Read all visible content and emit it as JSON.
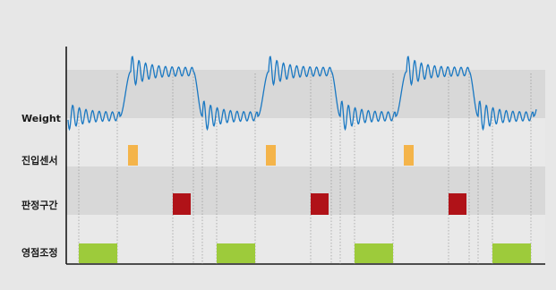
{
  "rows": [
    {
      "key": "weight",
      "label": "Weight"
    },
    {
      "key": "entry_sensor",
      "label": "진입센서"
    },
    {
      "key": "judgment_zone",
      "label": "판정구간"
    },
    {
      "key": "zero_adjust",
      "label": "영점조정"
    }
  ],
  "colors": {
    "background": "#e7e7e7",
    "band_dark": "#d8d8d8",
    "band_light": "#e9e9e9",
    "weight_signal": "#1a78c2",
    "entry_sensor": "#f4b44a",
    "judgment_zone": "#b01218",
    "zero_adjust": "#9dcb3b",
    "axis": "#1a1a1a",
    "guide_line": "#8a8a8a"
  },
  "cycle_count": 3,
  "signal_states": [
    "low",
    "rise",
    "high",
    "fall",
    "low"
  ]
}
